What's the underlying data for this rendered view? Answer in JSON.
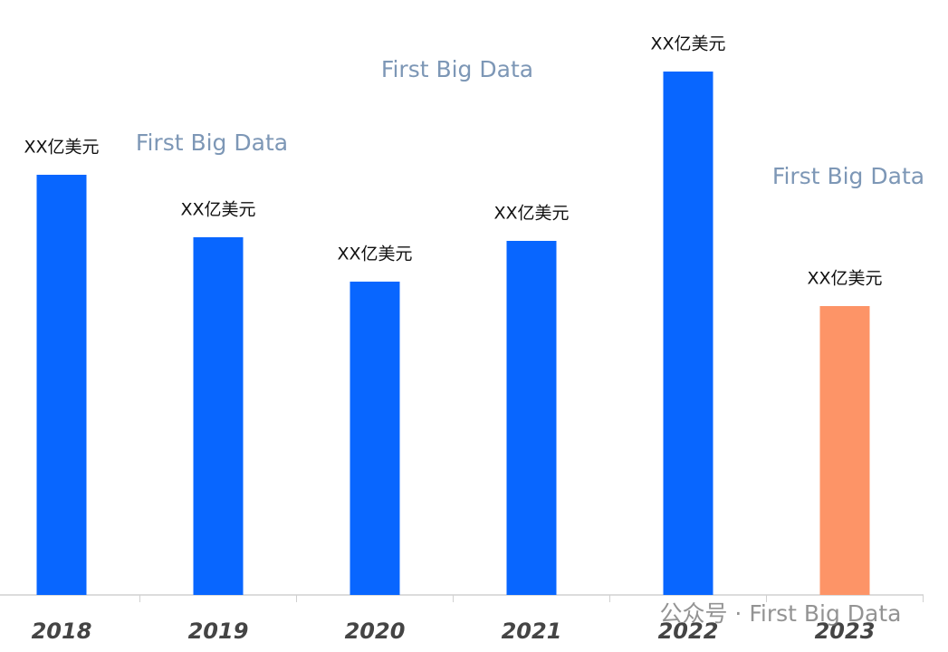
{
  "chart_data": {
    "type": "bar",
    "categories": [
      "2018",
      "2019",
      "2020",
      "2021",
      "2022",
      "2023"
    ],
    "values": [
      464,
      395,
      346,
      391,
      578,
      319
    ],
    "colors": [
      "#0866ff",
      "#0866ff",
      "#0866ff",
      "#0866ff",
      "#0866ff",
      "#fd9467"
    ],
    "bar_labels": [
      "XX亿美元",
      "XX亿美元",
      "XX亿美元",
      "XX亿美元",
      "XX亿美元",
      "XX亿美元"
    ],
    "ylim": [
      0,
      600
    ],
    "annotations": [
      "First Big Data",
      "First Big Data",
      "First Big Data",
      "公众号 · First Big Data"
    ]
  }
}
